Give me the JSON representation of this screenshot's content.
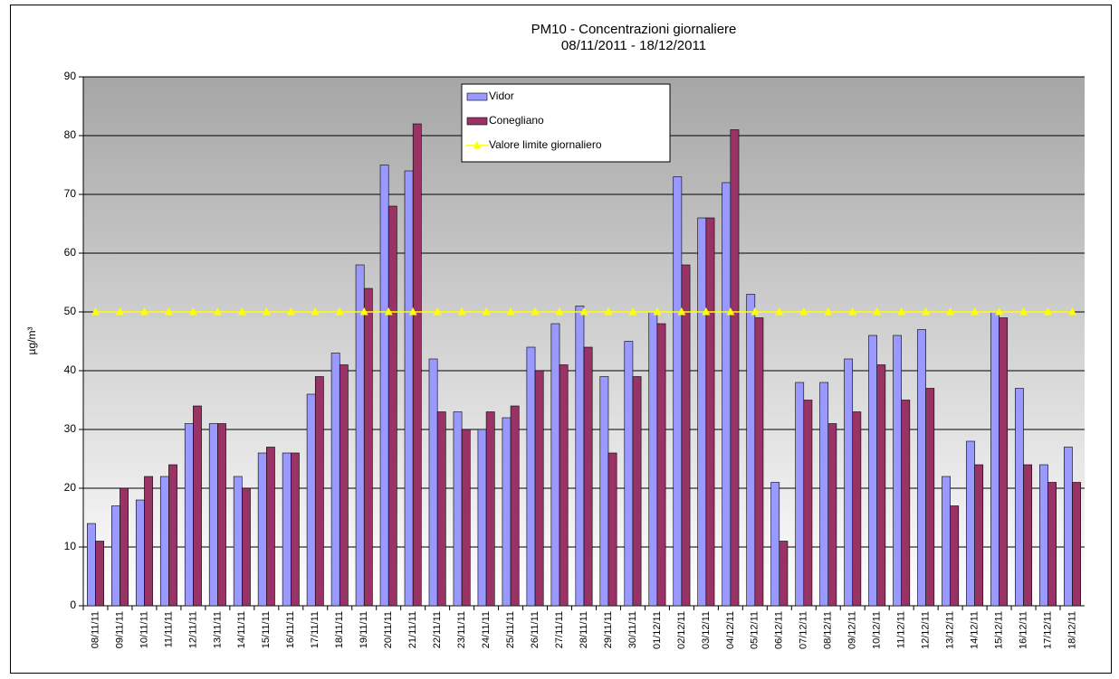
{
  "chart_data": {
    "type": "bar",
    "title": "PM10 - Concentrazioni giornaliere",
    "subtitle": "08/11/2011 - 18/12/2011",
    "y_label": "µg/m³",
    "categories": [
      "08/11/11",
      "09/11/11",
      "10/11/11",
      "11/11/11",
      "12/11/11",
      "13/11/11",
      "14/11/11",
      "15/11/11",
      "16/11/11",
      "17/11/11",
      "18/11/11",
      "19/11/11",
      "20/11/11",
      "21/11/11",
      "22/11/11",
      "23/11/11",
      "24/11/11",
      "25/11/11",
      "26/11/11",
      "27/11/11",
      "28/11/11",
      "29/11/11",
      "30/11/11",
      "01/12/11",
      "02/12/11",
      "03/12/11",
      "04/12/11",
      "05/12/11",
      "06/12/11",
      "07/12/11",
      "08/12/11",
      "09/12/11",
      "10/12/11",
      "11/12/11",
      "12/12/11",
      "13/12/11",
      "14/12/11",
      "15/12/11",
      "16/12/11",
      "17/12/11",
      "18/12/11"
    ],
    "series": [
      {
        "name": "Vidor",
        "type": "bar",
        "color": "#9999ff",
        "values": [
          14,
          17,
          18,
          22,
          31,
          31,
          22,
          26,
          26,
          36,
          43,
          58,
          75,
          74,
          42,
          33,
          30,
          32,
          44,
          48,
          51,
          39,
          45,
          50,
          73,
          66,
          72,
          53,
          21,
          38,
          38,
          42,
          46,
          46,
          47,
          22,
          28,
          50,
          37,
          24,
          27
        ]
      },
      {
        "name": "Conegliano",
        "type": "bar",
        "color": "#993366",
        "values": [
          11,
          20,
          22,
          24,
          34,
          31,
          20,
          27,
          26,
          39,
          41,
          54,
          68,
          82,
          33,
          30,
          33,
          34,
          40,
          41,
          44,
          26,
          39,
          48,
          58,
          66,
          81,
          49,
          11,
          35,
          31,
          33,
          41,
          35,
          37,
          17,
          24,
          49,
          24,
          21,
          21
        ]
      },
      {
        "name": "Valore limite giornaliero",
        "type": "line",
        "color": "#ffff00",
        "values": [
          50,
          50,
          50,
          50,
          50,
          50,
          50,
          50,
          50,
          50,
          50,
          50,
          50,
          50,
          50,
          50,
          50,
          50,
          50,
          50,
          50,
          50,
          50,
          50,
          50,
          50,
          50,
          50,
          50,
          50,
          50,
          50,
          50,
          50,
          50,
          50,
          50,
          50,
          50,
          50,
          50
        ]
      }
    ],
    "ylim": [
      0,
      90
    ],
    "yticks": [
      0,
      10,
      20,
      30,
      40,
      50,
      60,
      70,
      80,
      90
    ],
    "grid": true
  }
}
